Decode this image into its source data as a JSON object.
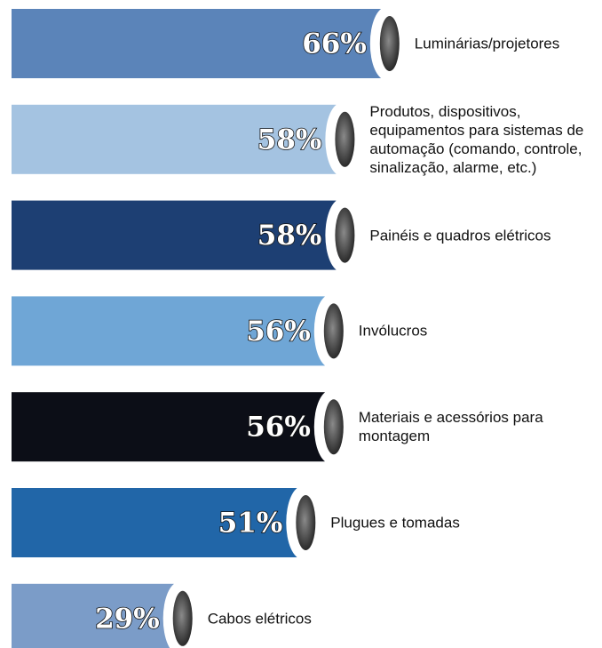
{
  "chart_data": {
    "type": "bar",
    "categories": [
      "Luminárias/projetores",
      "Produtos, dispositivos, equipamentos para sistemas de automação (comando, controle, sinalização, alarme, etc.)",
      "Painéis e quadros elétricos",
      "Invólucros",
      "Materiais e acessórios para montagem",
      "Plugues e tomadas",
      "Cabos elétricos"
    ],
    "values": [
      66,
      58,
      58,
      56,
      56,
      51,
      29
    ],
    "value_labels": [
      "66%",
      "58%",
      "58%",
      "56%",
      "56%",
      "51%",
      "29%"
    ],
    "colors": [
      "#5b84b9",
      "#a4c3e1",
      "#1d3f73",
      "#6fa6d6",
      "#0c0e17",
      "#2166a8",
      "#7b9cc8"
    ]
  }
}
